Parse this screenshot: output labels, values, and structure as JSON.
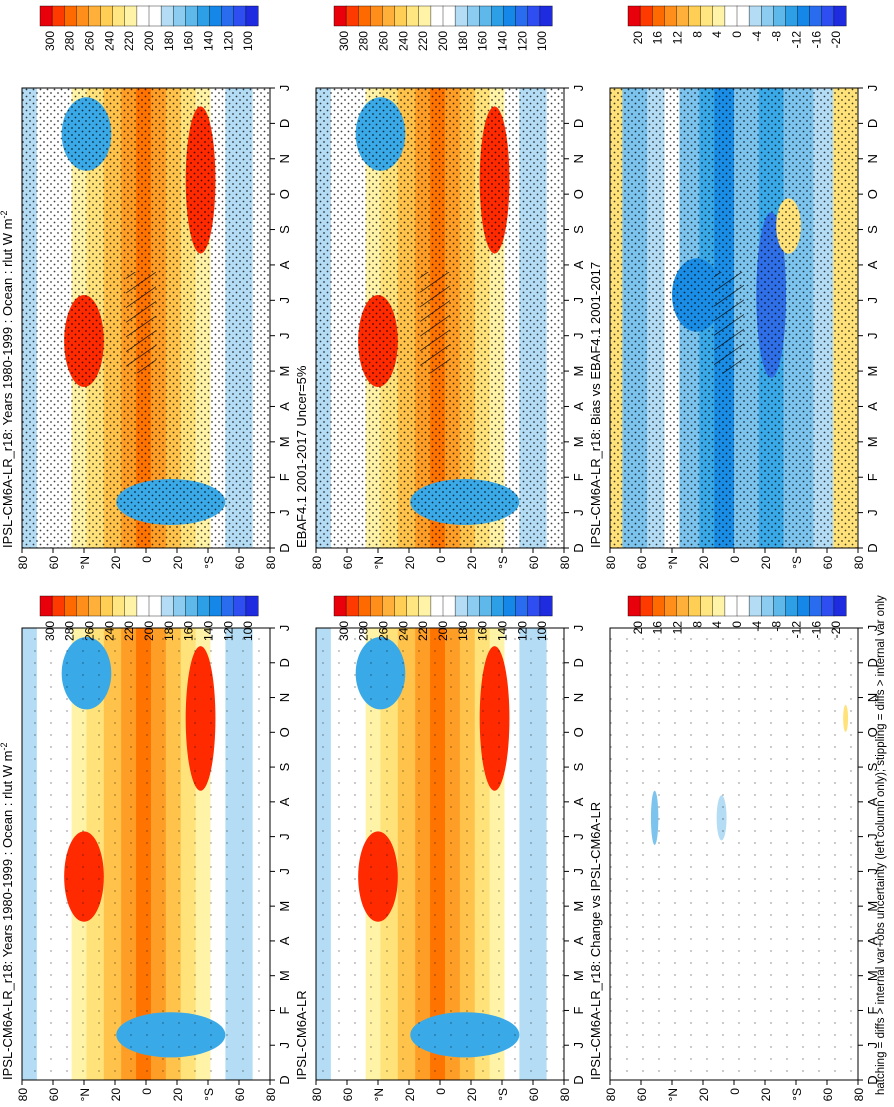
{
  "footer": "hatching = diffs > internal var+obs uncertainty (left column only); stippling = diffs > internal var only",
  "months": [
    "D",
    "J",
    "F",
    "M",
    "A",
    "M",
    "J",
    "J",
    "A",
    "S",
    "O",
    "N",
    "D",
    "J"
  ],
  "lat_ticks": [
    "80",
    "60",
    "°N",
    "20",
    "0",
    "20",
    "°S",
    "60",
    "80"
  ],
  "abs_scale": {
    "labels": [
      "300",
      "280",
      "260",
      "240",
      "220",
      "200",
      "180",
      "160",
      "140",
      "120",
      "100"
    ],
    "colors": [
      "#e8000b",
      "#ff3a00",
      "#ff6a00",
      "#ff8f1a",
      "#ffb03a",
      "#ffcf55",
      "#ffe680",
      "#fff3a8",
      "#ffffff",
      "#ffffff",
      "#b4ddf5",
      "#8cccf0",
      "#5fb8ea",
      "#2d9fe6",
      "#1487e8",
      "#2a6cf0",
      "#2f4ef2",
      "#1f2bdf"
    ]
  },
  "diff_scale": {
    "labels": [
      "20",
      "16",
      "12",
      "8",
      "4",
      "0",
      "-4",
      "-8",
      "-12",
      "-16",
      "-20"
    ],
    "colors": [
      "#e8000b",
      "#ff3a00",
      "#ff6a00",
      "#ff8f1a",
      "#ffb03a",
      "#ffcf55",
      "#ffe680",
      "#fff3a8",
      "#ffffff",
      "#ffffff",
      "#b4ddf5",
      "#8cccf0",
      "#5fb8ea",
      "#2d9fe6",
      "#1487e8",
      "#2a6cf0",
      "#2f4ef2",
      "#1f2bdf"
    ]
  },
  "panels": [
    {
      "title": "IPSL-CM6A-LR_r18: Years 1980-1999 : Ocean : rlut W m",
      "sup": "-2",
      "kind": "abs",
      "stipple": "dense",
      "hatch": true
    },
    {
      "title": "EBAF4.1 2001-2017 Uncer=5%",
      "sup": "",
      "kind": "abs",
      "stipple": "dense",
      "hatch": true
    },
    {
      "title": "IPSL-CM6A-LR_r18: Bias vs EBAF4.1 2001-2017",
      "sup": "",
      "kind": "bias",
      "stipple": "dense",
      "hatch": true
    },
    {
      "title": "IPSL-CM6A-LR_r18: Years 1980-1999 : Ocean : rlut W m",
      "sup": "-2",
      "kind": "abs",
      "stipple": "sparse",
      "hatch": false
    },
    {
      "title": "IPSL-CM6A-LR",
      "sup": "",
      "kind": "abs",
      "stipple": "sparse",
      "hatch": false
    },
    {
      "title": "IPSL-CM6A-LR_r18: Change vs IPSL-CM6A-LR",
      "sup": "",
      "kind": "change",
      "stipple": "sparse",
      "hatch": false
    }
  ],
  "chart_data": [
    {
      "type": "heatmap",
      "title": "IPSL-CM6A-LR_r18: Years 1980-1999 : Ocean : rlut W m-2",
      "x": "month",
      "y": "latitude",
      "z_range": [
        100,
        300
      ]
    },
    {
      "type": "heatmap",
      "title": "EBAF4.1 2001-2017 Uncer=5%",
      "x": "month",
      "y": "latitude",
      "z_range": [
        100,
        300
      ]
    },
    {
      "type": "heatmap",
      "title": "IPSL-CM6A-LR_r18: Bias vs EBAF4.1 2001-2017",
      "x": "month",
      "y": "latitude",
      "z_range": [
        -20,
        20
      ]
    },
    {
      "type": "heatmap",
      "title": "IPSL-CM6A-LR_r18: Years 1980-1999 : Ocean : rlut W m-2",
      "x": "month",
      "y": "latitude",
      "z_range": [
        100,
        300
      ]
    },
    {
      "type": "heatmap",
      "title": "IPSL-CM6A-LR",
      "x": "month",
      "y": "latitude",
      "z_range": [
        100,
        300
      ]
    },
    {
      "type": "heatmap",
      "title": "IPSL-CM6A-LR_r18: Change vs IPSL-CM6A-LR",
      "x": "month",
      "y": "latitude",
      "z_range": [
        -20,
        20
      ]
    }
  ]
}
